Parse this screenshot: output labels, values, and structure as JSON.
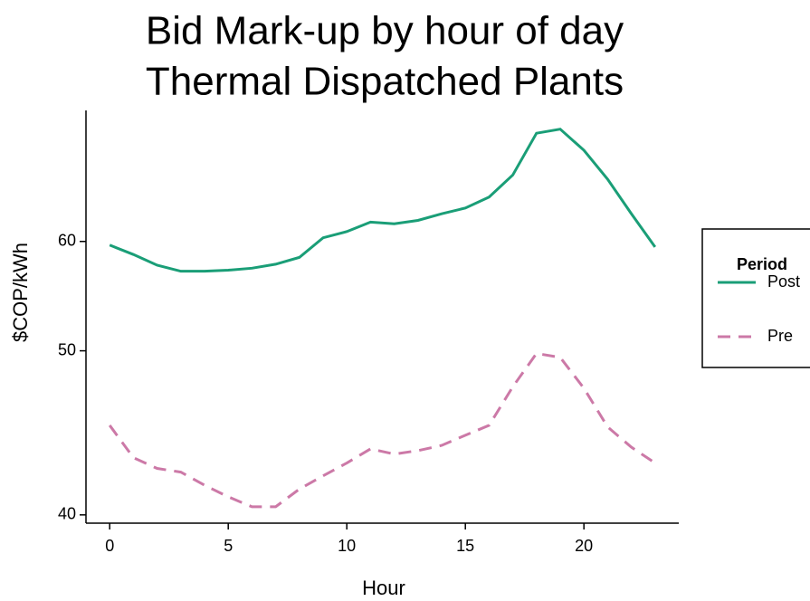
{
  "chart_data": {
    "type": "line",
    "title": [
      "Bid Mark-up by hour of day",
      "Thermal Dispatched Plants"
    ],
    "x_label": "Hour",
    "y_label": "$COP/kWh",
    "x": [
      0,
      1,
      2,
      3,
      4,
      5,
      6,
      7,
      8,
      9,
      10,
      11,
      12,
      13,
      14,
      15,
      16,
      17,
      18,
      19,
      20,
      21,
      22,
      23
    ],
    "series": [
      {
        "name": "Post",
        "color": "#1a9e77",
        "dash": false,
        "values": [
          59.6,
          58.6,
          57.5,
          56.9,
          56.9,
          57.0,
          57.2,
          57.6,
          58.3,
          60.4,
          61.1,
          62.2,
          62.0,
          62.4,
          63.2,
          63.9,
          65.3,
          68.3,
          74.8,
          75.5,
          72.0,
          67.7,
          63.2,
          59.4
        ]
      },
      {
        "name": "Pre",
        "color": "#cc79a7",
        "dash": true,
        "values": [
          44.9,
          43.0,
          42.4,
          42.2,
          41.5,
          40.9,
          40.4,
          40.4,
          41.3,
          42.0,
          42.7,
          43.5,
          43.2,
          43.4,
          43.7,
          44.3,
          44.9,
          47.4,
          49.8,
          49.5,
          47.3,
          44.8,
          43.6,
          42.7
        ]
      }
    ],
    "xlim": [
      -1,
      24
    ],
    "xticks": [
      0,
      5,
      10,
      15,
      20
    ],
    "ylim": [
      39.6,
      78.9
    ],
    "yticks": [
      40,
      50,
      60
    ],
    "yscale": "reciprocal",
    "legend_title": "Period",
    "legend_position": "right"
  }
}
